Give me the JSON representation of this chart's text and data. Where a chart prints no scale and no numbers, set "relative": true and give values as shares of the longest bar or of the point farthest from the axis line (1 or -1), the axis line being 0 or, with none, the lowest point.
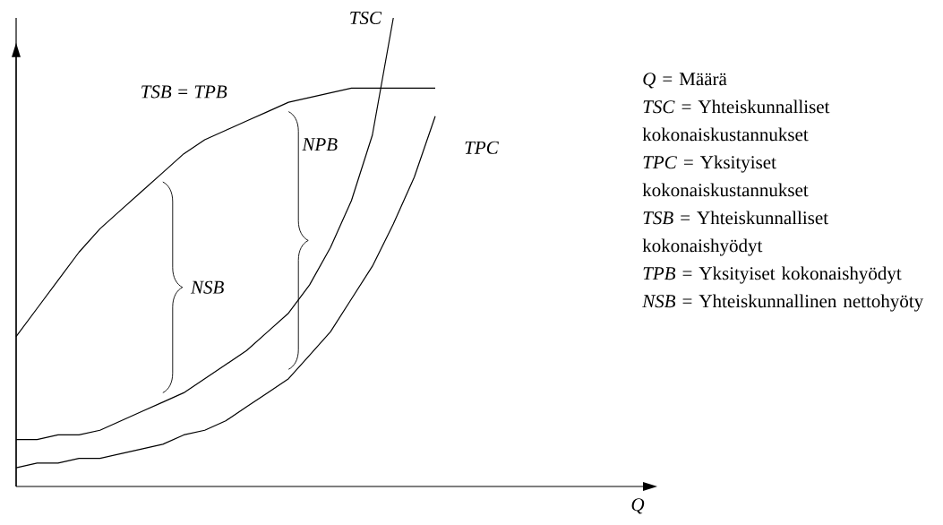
{
  "chart_data": {
    "type": "line",
    "relative": true,
    "xlabel": "Q",
    "legend": false,
    "marker": "none",
    "line_style": "solid",
    "categories": [
      null,
      null,
      null,
      null,
      null,
      null,
      null,
      null,
      null,
      null,
      null,
      null,
      null,
      null,
      null,
      null,
      null,
      null,
      null,
      null,
      null,
      null,
      null,
      null,
      null,
      null,
      null,
      null,
      null,
      null,
      null
    ],
    "series": [
      {
        "name": "TSB = TPB",
        "color": "#000000",
        "values": [
          0.32,
          0.38,
          0.44,
          0.5,
          0.55,
          0.59,
          0.63,
          0.67,
          0.71,
          0.74,
          0.76,
          0.78,
          0.8,
          0.82,
          0.83,
          0.84,
          0.85,
          0.85,
          0.85,
          0.85,
          0.85,
          null,
          null,
          null,
          null,
          null,
          null,
          null,
          null,
          null,
          null
        ]
      },
      {
        "name": "TSC",
        "color": "#000000",
        "values": [
          0.1,
          0.1,
          0.11,
          0.11,
          0.12,
          0.14,
          0.16,
          0.18,
          0.2,
          0.23,
          0.26,
          0.29,
          0.33,
          0.37,
          0.43,
          0.51,
          0.61,
          0.75,
          1.0,
          null,
          null,
          null,
          null,
          null,
          null,
          null,
          null,
          null,
          null,
          null,
          null
        ]
      },
      {
        "name": "TPC",
        "color": "#000000",
        "values": [
          0.04,
          0.05,
          0.05,
          0.06,
          0.06,
          0.07,
          0.08,
          0.09,
          0.11,
          0.12,
          0.14,
          0.17,
          0.2,
          0.23,
          0.28,
          0.33,
          0.4,
          0.47,
          0.56,
          0.66,
          0.79,
          null,
          null,
          null,
          null,
          null,
          null,
          null,
          null,
          null,
          null
        ]
      }
    ],
    "annotations": [
      "NSB",
      "NPB",
      "*Q* = Määrä",
      "*TSC* = Yhteiskunnalliset kokonaiskustannukset",
      "*TPC* = Yksityiset kokonaiskustannukset",
      "*TSB* = Yhteiskunnalliset kokonaishyödyt",
      "*TPB* = Yksityiset kokonaishyödyt",
      "*NSB* = Yhteiskunnallinen nettohyöty"
    ]
  }
}
